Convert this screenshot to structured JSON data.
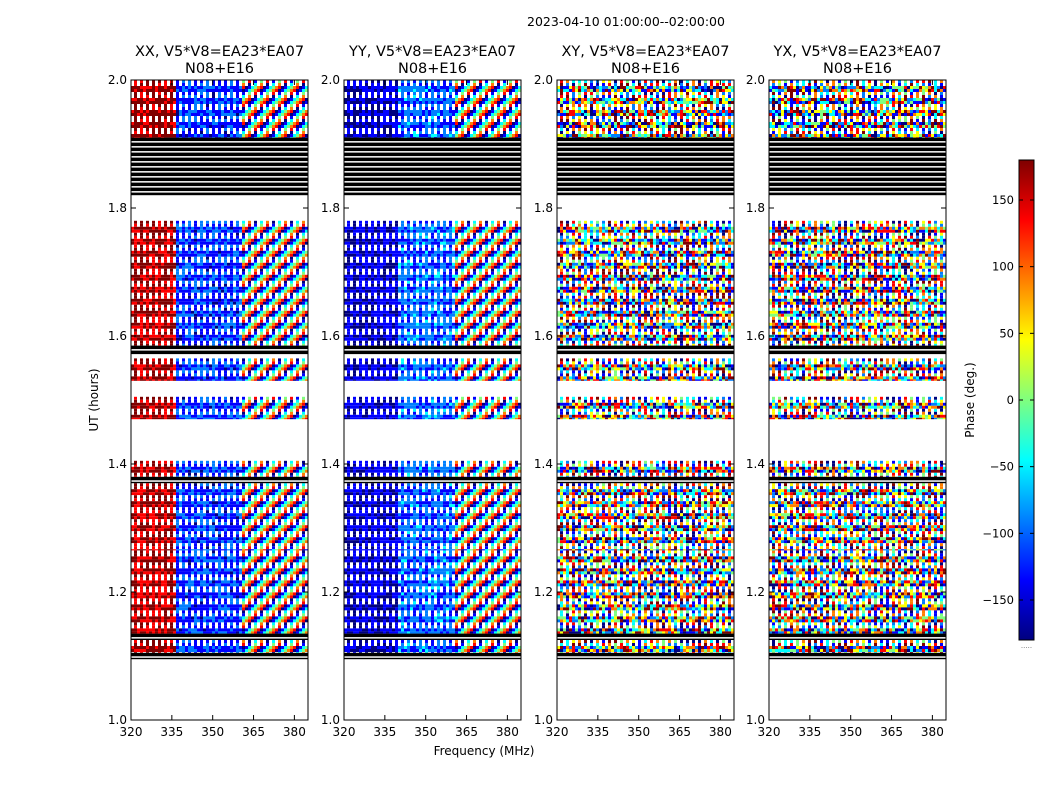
{
  "figure": {
    "suptitle": "2023-04-10  01:00:00--02:00:00",
    "xlabel": "Frequency (MHz)",
    "ylabel": "UT (hours)",
    "colorbar_label": "Phase (deg.)",
    "colorbar_footnote": ".....",
    "palette": [
      "#00007f",
      "#0000ff",
      "#007fff",
      "#00ffff",
      "#7fff7f",
      "#ffff00",
      "#ff7f00",
      "#ff0000",
      "#7f0000"
    ]
  },
  "chart_data": {
    "type": "heatmap",
    "x_range": [
      320,
      385
    ],
    "y_range": [
      1.0,
      2.0
    ],
    "x_ticks": [
      320,
      335,
      350,
      365,
      380
    ],
    "y_ticks": [
      1.0,
      1.2,
      1.4,
      1.6,
      1.8,
      2.0
    ],
    "y_tick_labels": [
      "1.0",
      "1.2",
      "1.4",
      "1.6",
      "1.8",
      "2.0"
    ],
    "colorbar_range": [
      -180,
      180
    ],
    "colorbar_ticks": [
      -150,
      -100,
      -50,
      0,
      50,
      100,
      150
    ],
    "colorbar_tick_labels": [
      "−150",
      "−100",
      "−50",
      "0",
      "50",
      "100",
      "150"
    ],
    "flagged_blocks_hours": [
      [
        1.095,
        1.105
      ],
      [
        1.125,
        1.135
      ],
      [
        1.37,
        1.38
      ],
      [
        1.57,
        1.585
      ],
      [
        1.82,
        1.91
      ]
    ],
    "data_segments_hours": [
      [
        1.105,
        1.125
      ],
      [
        1.135,
        1.265
      ],
      [
        1.265,
        1.37
      ],
      [
        1.38,
        1.405
      ],
      [
        1.47,
        1.505
      ],
      [
        1.53,
        1.565
      ],
      [
        1.585,
        1.78
      ],
      [
        1.91,
        2.0
      ]
    ],
    "panels": [
      {
        "title_line1": "XX, V5*V8=EA23*EA07",
        "title_line2": "N08+E16",
        "phase_mode": "coherent-red-blue"
      },
      {
        "title_line1": "YY, V5*V8=EA23*EA07",
        "title_line2": "N08+E16",
        "phase_mode": "coherent-blue"
      },
      {
        "title_line1": "XY, V5*V8=EA23*EA07",
        "title_line2": "N08+E16",
        "phase_mode": "noise"
      },
      {
        "title_line1": "YX, V5*V8=EA23*EA07",
        "title_line2": "N08+E16",
        "phase_mode": "noise"
      }
    ]
  }
}
